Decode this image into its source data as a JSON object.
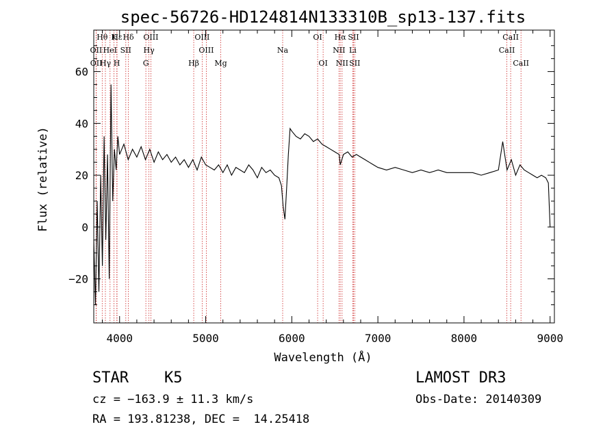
{
  "chart_data": {
    "type": "line",
    "title": "spec-56726-HD124814N133310B_sp13-137.fits",
    "xlabel": "Wavelength (Å)",
    "ylabel": "Flux (relative)",
    "xlim": [
      3700,
      9050
    ],
    "ylim": [
      -37,
      76
    ],
    "x_ticks": [
      4000,
      5000,
      6000,
      7000,
      8000,
      9000
    ],
    "y_ticks": [
      -20,
      0,
      20,
      40,
      60
    ],
    "x_tick_labels": [
      "4000",
      "5000",
      "6000",
      "7000",
      "8000",
      "9000"
    ],
    "y_tick_labels": [
      "−20",
      "0",
      "20",
      "40",
      "60"
    ],
    "grid": false,
    "series": [
      {
        "x": [
          3700,
          3720,
          3740,
          3760,
          3780,
          3800,
          3820,
          3840,
          3860,
          3880,
          3900,
          3920,
          3940,
          3960,
          3980,
          4000,
          4050,
          4100,
          4150,
          4200,
          4250,
          4300,
          4350,
          4400,
          4450,
          4500,
          4550,
          4600,
          4650,
          4700,
          4750,
          4800,
          4850,
          4900,
          4950,
          5000,
          5050,
          5100,
          5150,
          5200,
          5250,
          5300,
          5350,
          5400,
          5450,
          5500,
          5550,
          5600,
          5650,
          5700,
          5750,
          5800,
          5850,
          5880,
          5900,
          5920,
          5940,
          5960,
          5980,
          6000,
          6050,
          6100,
          6150,
          6200,
          6250,
          6300,
          6350,
          6400,
          6450,
          6500,
          6550,
          6563,
          6600,
          6650,
          6700,
          6750,
          6800,
          6850,
          6900,
          6950,
          7000,
          7100,
          7200,
          7300,
          7400,
          7500,
          7600,
          7700,
          7800,
          7900,
          8000,
          8100,
          8200,
          8300,
          8400,
          8450,
          8500,
          8550,
          8600,
          8650,
          8700,
          8750,
          8800,
          8850,
          8900,
          8950,
          8980,
          9000
        ],
        "y": [
          -5,
          -30,
          10,
          -25,
          20,
          -15,
          35,
          -5,
          28,
          -20,
          55,
          10,
          30,
          22,
          35,
          28,
          32,
          26,
          30,
          27,
          31,
          26,
          30,
          25,
          29,
          26,
          28,
          25,
          27,
          24,
          26,
          23,
          26,
          22,
          27,
          24,
          23,
          22,
          24,
          21,
          24,
          20,
          23,
          22,
          21,
          24,
          22,
          19,
          23,
          21,
          22,
          20,
          19,
          16,
          8,
          3,
          15,
          28,
          38,
          37,
          35,
          34,
          36,
          35,
          33,
          34,
          32,
          31,
          30,
          29,
          28,
          24,
          28,
          29,
          27,
          28,
          27,
          26,
          25,
          24,
          23,
          22,
          23,
          22,
          21,
          22,
          21,
          22,
          21,
          21,
          21,
          21,
          20,
          21,
          22,
          33,
          22,
          26,
          20,
          24,
          22,
          21,
          20,
          19,
          20,
          19,
          17,
          0
        ]
      }
    ],
    "lines": [
      {
        "label": "Hθ",
        "x": 3798
      },
      {
        "label": "OII",
        "x": 3727
      },
      {
        "label": "OII",
        "x": 3729
      },
      {
        "label": "K",
        "x": 3934
      },
      {
        "label": "Hε",
        "x": 3970
      },
      {
        "label": "HeI",
        "x": 3889
      },
      {
        "label": "SII",
        "x": 4072
      },
      {
        "label": "H",
        "x": 3968
      },
      {
        "label": "Hγ",
        "x": 3835
      },
      {
        "label": "Hδ",
        "x": 4102
      },
      {
        "label": "OIII",
        "x": 4363
      },
      {
        "label": "Hγ",
        "x": 4341
      },
      {
        "label": "G",
        "x": 4305
      },
      {
        "label": "OIII",
        "x": 4959
      },
      {
        "label": "OIII",
        "x": 5007
      },
      {
        "label": "Hβ",
        "x": 4861
      },
      {
        "label": "Mg",
        "x": 5175
      },
      {
        "label": "Na",
        "x": 5894
      },
      {
        "label": "OI",
        "x": 6300
      },
      {
        "label": "OI",
        "x": 6364
      },
      {
        "label": "Hα",
        "x": 6563
      },
      {
        "label": "SII",
        "x": 6717
      },
      {
        "label": "NII",
        "x": 6548
      },
      {
        "label": "Li",
        "x": 6708
      },
      {
        "label": "NII",
        "x": 6584
      },
      {
        "label": "SII",
        "x": 6731
      },
      {
        "label": "CaII",
        "x": 8542
      },
      {
        "label": "CaII",
        "x": 8498
      },
      {
        "label": "CaII",
        "x": 8662
      }
    ]
  },
  "info": {
    "object_class": "STAR",
    "subclass": "K5",
    "cz": "cz = −163.9 ± 11.3 km/s",
    "coords": "RA = 193.81238, DEC =  14.25418",
    "survey": "LAMOST DR3",
    "obs_date": "Obs-Date: 20140309"
  }
}
